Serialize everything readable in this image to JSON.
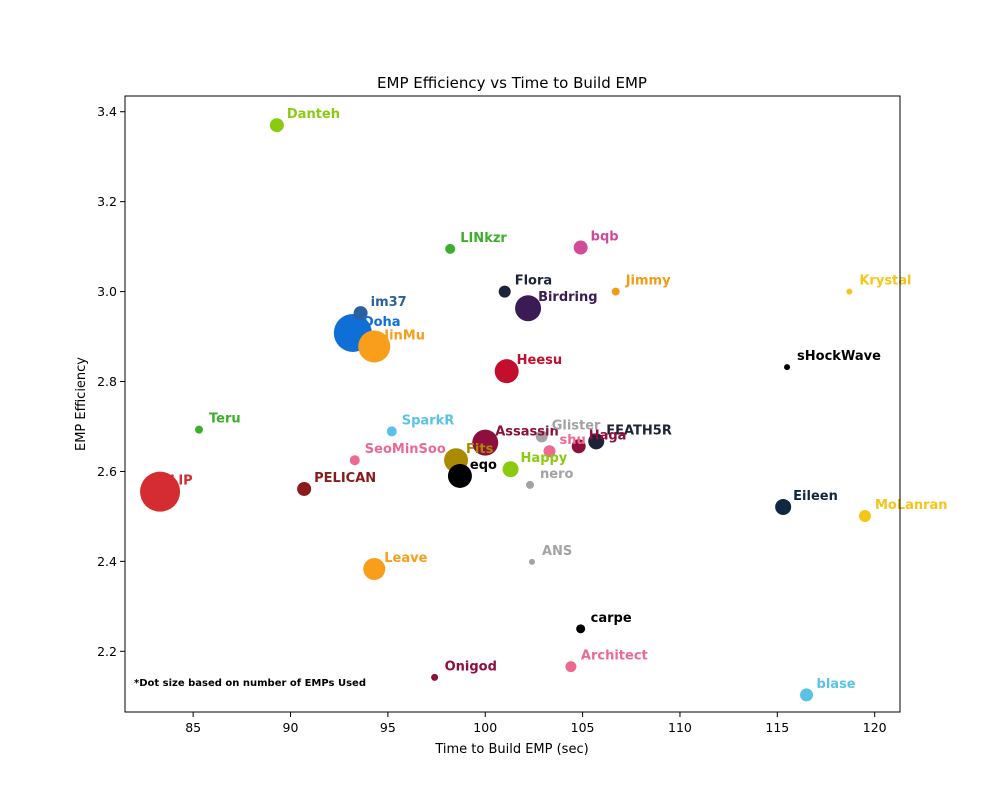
{
  "chart_data": {
    "type": "scatter",
    "title": "EMP Efficiency vs Time to Build EMP",
    "xlabel": "Time to Build EMP (sec)",
    "ylabel": "EMP Efficiency",
    "xlim": [
      81.5,
      121.3
    ],
    "ylim": [
      2.065,
      3.435
    ],
    "xticks": [
      85,
      90,
      95,
      100,
      105,
      110,
      115,
      120
    ],
    "yticks": [
      2.2,
      2.4,
      2.6,
      2.8,
      3.0,
      3.2,
      3.4
    ],
    "xtick_labels": [
      "85",
      "90",
      "95",
      "100",
      "105",
      "110",
      "115",
      "120"
    ],
    "ytick_labels": [
      "2.2",
      "2.4",
      "2.6",
      "2.8",
      "3.0",
      "3.2",
      "3.4"
    ],
    "grid": false,
    "legend": "none",
    "annotation": "*Dot size based on number of EMPs Used",
    "points": [
      {
        "label": "Danteh",
        "x": 89.3,
        "y": 3.37,
        "size": 7,
        "color": "#8ACB10"
      },
      {
        "label": "LINkzr",
        "x": 98.2,
        "y": 3.095,
        "size": 5,
        "color": "#3DAE2B"
      },
      {
        "label": "bqb",
        "x": 104.9,
        "y": 3.098,
        "size": 7,
        "color": "#D04B9A"
      },
      {
        "label": "Flora",
        "x": 101.0,
        "y": 3.0,
        "size": 6,
        "color": "#1C2238"
      },
      {
        "label": "Jimmy",
        "x": 106.7,
        "y": 3.0,
        "size": 4,
        "color": "#F39C12"
      },
      {
        "label": "Krystal",
        "x": 118.7,
        "y": 3.0,
        "size": 3,
        "color": "#F5C518"
      },
      {
        "label": "Birdring",
        "x": 102.2,
        "y": 2.963,
        "size": 13,
        "color": "#3A1B54"
      },
      {
        "label": "im37",
        "x": 93.6,
        "y": 2.952,
        "size": 7,
        "color": "#2C5FA0"
      },
      {
        "label": "Doha",
        "x": 93.2,
        "y": 2.908,
        "size": 19,
        "color": "#0F6FD6"
      },
      {
        "label": "JinMu",
        "x": 94.3,
        "y": 2.878,
        "size": 16,
        "color": "#F89E1B"
      },
      {
        "label": "sHockWave",
        "x": 115.5,
        "y": 2.832,
        "size": 3,
        "color": "#000000"
      },
      {
        "label": "Heesu",
        "x": 101.1,
        "y": 2.823,
        "size": 12,
        "color": "#C30E2E"
      },
      {
        "label": "Teru",
        "x": 85.3,
        "y": 2.693,
        "size": 4,
        "color": "#3DAE2B"
      },
      {
        "label": "SparkR",
        "x": 95.2,
        "y": 2.689,
        "size": 5,
        "color": "#5BC2E7"
      },
      {
        "label": "Assassin",
        "x": 100.0,
        "y": 2.664,
        "size": 13,
        "color": "#8C0F3D"
      },
      {
        "label": "Glister",
        "x": 102.9,
        "y": 2.678,
        "size": 6,
        "color": "#A3A3A3"
      },
      {
        "label": "FEATH5R",
        "x": 105.7,
        "y": 2.667,
        "size": 8,
        "color": "#1C2238"
      },
      {
        "label": "shu",
        "x": 103.3,
        "y": 2.645,
        "size": 6,
        "color": "#EC6A92"
      },
      {
        "label": "Haga",
        "x": 104.8,
        "y": 2.656,
        "size": 7,
        "color": "#8C0F3D"
      },
      {
        "label": "SeoMinSoo",
        "x": 93.3,
        "y": 2.625,
        "size": 5,
        "color": "#EC6A92"
      },
      {
        "label": "Fits",
        "x": 98.5,
        "y": 2.625,
        "size": 12,
        "color": "#AA8A00"
      },
      {
        "label": "Happy",
        "x": 101.3,
        "y": 2.605,
        "size": 8,
        "color": "#8ACB10"
      },
      {
        "label": "eqo",
        "x": 98.7,
        "y": 2.59,
        "size": 12,
        "color": "#000000"
      },
      {
        "label": "nero",
        "x": 102.3,
        "y": 2.57,
        "size": 4,
        "color": "#A3A3A3"
      },
      {
        "label": "LIP",
        "x": 83.3,
        "y": 2.555,
        "size": 20,
        "color": "#D42C31"
      },
      {
        "label": "PELICAN",
        "x": 90.7,
        "y": 2.561,
        "size": 7,
        "color": "#8B1A1A"
      },
      {
        "label": "Eileen",
        "x": 115.3,
        "y": 2.521,
        "size": 8,
        "color": "#10283F"
      },
      {
        "label": "MoLanran",
        "x": 119.5,
        "y": 2.501,
        "size": 6,
        "color": "#F5C518"
      },
      {
        "label": "ANS",
        "x": 102.4,
        "y": 2.399,
        "size": 3,
        "color": "#A3A3A3"
      },
      {
        "label": "Leave",
        "x": 94.3,
        "y": 2.383,
        "size": 11,
        "color": "#F89E1B"
      },
      {
        "label": "carpe",
        "x": 104.9,
        "y": 2.25,
        "size": 4.5,
        "color": "#000000"
      },
      {
        "label": "Architect",
        "x": 104.4,
        "y": 2.166,
        "size": 5.5,
        "color": "#EC6A92"
      },
      {
        "label": "Onigod",
        "x": 97.4,
        "y": 2.142,
        "size": 3.5,
        "color": "#8C0F3D"
      },
      {
        "label": "blase",
        "x": 116.5,
        "y": 2.103,
        "size": 6.5,
        "color": "#5BC2E7"
      }
    ]
  }
}
